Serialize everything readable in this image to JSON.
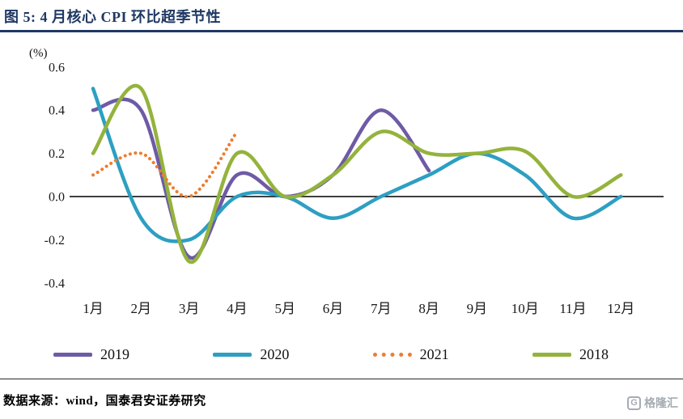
{
  "header": {
    "title": "图 5: 4 月核心 CPI 环比超季节性"
  },
  "chart_data": {
    "type": "line",
    "title": "4 月核心 CPI 环比超季节性",
    "y_unit_label": "(%)",
    "ylim": [
      -0.4,
      0.6
    ],
    "ytick_labels": [
      "0.6",
      "0.4",
      "0.2",
      "0.0",
      "-0.2",
      "-0.4"
    ],
    "categories": [
      "1月",
      "2月",
      "3月",
      "4月",
      "5月",
      "6月",
      "7月",
      "8月",
      "9月",
      "10月",
      "11月",
      "12月"
    ],
    "grid": false,
    "legend_position": "bottom",
    "series": [
      {
        "name": "2019",
        "color": "#6E5BA5",
        "style": "solid",
        "values": [
          0.4,
          0.4,
          -0.28,
          0.1,
          0,
          0.1,
          0.4,
          0.12,
          null,
          null,
          null,
          null
        ]
      },
      {
        "name": "2020",
        "color": "#2D9FC2",
        "style": "solid",
        "values": [
          0.5,
          -0.1,
          -0.2,
          0,
          0,
          -0.1,
          0,
          0.1,
          0.2,
          0.1,
          -0.1,
          0
        ]
      },
      {
        "name": "2021",
        "color": "#ED7D31",
        "style": "dotted",
        "values": [
          0.1,
          0.2,
          0,
          0.3,
          null,
          null,
          null,
          null,
          null,
          null,
          null,
          null
        ]
      },
      {
        "name": "2018",
        "color": "#94B33C",
        "style": "solid",
        "values": [
          0.2,
          0.5,
          -0.3,
          0.2,
          0,
          0.1,
          0.3,
          0.2,
          0.2,
          0.21,
          0,
          0.1
        ]
      }
    ]
  },
  "footer": {
    "source": "数据来源：wind，国泰君安证券研究",
    "logo_letter": "G",
    "logo_text": "格隆汇"
  }
}
